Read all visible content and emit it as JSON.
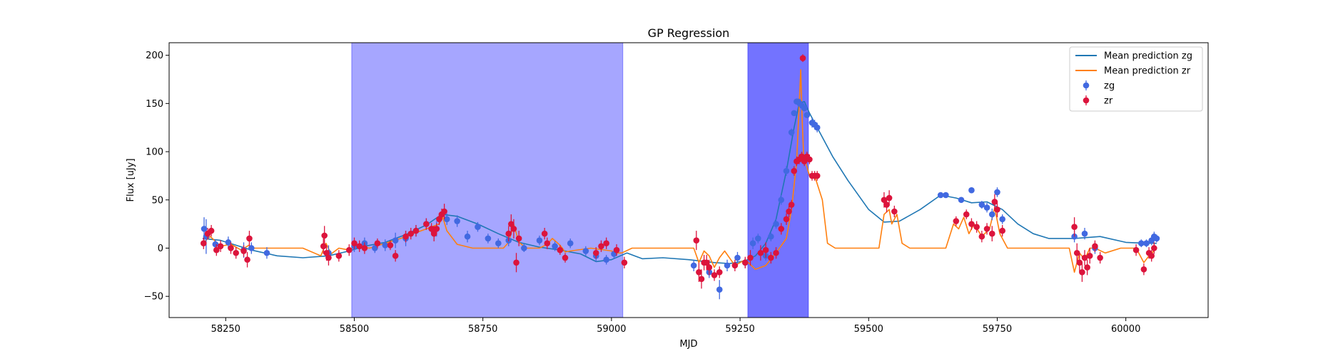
{
  "chart_data": {
    "type": "scatter",
    "title": "GP Regression",
    "xlabel": "MJD",
    "ylabel": "Flux [uJy]",
    "xlim": [
      58140,
      60160
    ],
    "ylim": [
      -72,
      213
    ],
    "xticks": [
      58250,
      58500,
      58750,
      59000,
      59250,
      59500,
      59750,
      60000
    ],
    "yticks": [
      -50,
      0,
      50,
      100,
      150,
      200
    ],
    "grid": false,
    "legend_position": "top-right",
    "shaded_regions": [
      {
        "x0": 58495,
        "x1": 59022,
        "color": "#0000ff",
        "alpha": 0.35
      },
      {
        "x0": 59265,
        "x1": 59383,
        "color": "#0000ff",
        "alpha": 0.55
      }
    ],
    "colors": {
      "zg_line": "#1f77b4",
      "zr_line": "#ff7f0e",
      "zg_points": "#4169e1",
      "zr_points": "#dc143c"
    },
    "legend": [
      {
        "label": "Mean prediction zg",
        "kind": "line",
        "color": "#1f77b4"
      },
      {
        "label": "Mean prediction zr",
        "kind": "line",
        "color": "#ff7f0e"
      },
      {
        "label": "zg",
        "kind": "point",
        "color": "#4169e1"
      },
      {
        "label": "zr",
        "kind": "point",
        "color": "#dc143c"
      }
    ],
    "series": [
      {
        "name": "Mean prediction zg",
        "kind": "line",
        "x": [
          58205,
          58240,
          58270,
          58300,
          58350,
          58400,
          58450,
          58490,
          58520,
          58560,
          58600,
          58640,
          58670,
          58700,
          58740,
          58780,
          58820,
          58860,
          58900,
          58940,
          58970,
          59000,
          59030,
          59060,
          59100,
          59150,
          59200,
          59230,
          59260,
          59280,
          59300,
          59320,
          59340,
          59355,
          59365,
          59375,
          59385,
          59400,
          59430,
          59460,
          59500,
          59530,
          59560,
          59600,
          59640,
          59670,
          59700,
          59730,
          59760,
          59790,
          59820,
          59850,
          59900,
          59950,
          60000,
          60040,
          60060
        ],
        "y": [
          10,
          8,
          3,
          -2,
          -8,
          -10,
          -8,
          -3,
          2,
          6,
          14,
          24,
          35,
          33,
          25,
          15,
          6,
          1,
          -2,
          -6,
          -14,
          -12,
          -5,
          -11,
          -10,
          -12,
          -15,
          -16,
          -13,
          -8,
          5,
          30,
          80,
          125,
          150,
          152,
          140,
          125,
          95,
          70,
          40,
          27,
          28,
          40,
          55,
          52,
          47,
          48,
          40,
          25,
          15,
          10,
          10,
          12,
          6,
          5,
          5
        ]
      },
      {
        "name": "Mean prediction zr",
        "kind": "line",
        "x": [
          58205,
          58220,
          58240,
          58260,
          58280,
          58295,
          58305,
          58320,
          58400,
          58435,
          58445,
          58455,
          58470,
          58490,
          58500,
          58530,
          58560,
          58590,
          58610,
          58630,
          58650,
          58665,
          58672,
          58680,
          58700,
          58730,
          58790,
          58800,
          58810,
          58820,
          58835,
          58860,
          58875,
          58885,
          58900,
          58910,
          58920,
          58960,
          59000,
          59010,
          59020,
          59040,
          59080,
          59160,
          59170,
          59180,
          59190,
          59200,
          59210,
          59220,
          59240,
          59260,
          59280,
          59300,
          59320,
          59340,
          59350,
          59360,
          59365,
          59368,
          59371,
          59374,
          59378,
          59385,
          59395,
          59410,
          59420,
          59435,
          59480,
          59520,
          59530,
          59540,
          59545,
          59555,
          59565,
          59580,
          59650,
          59665,
          59675,
          59685,
          59695,
          59705,
          59720,
          59735,
          59745,
          59755,
          59770,
          59800,
          59890,
          59900,
          59910,
          59920,
          59930,
          59940,
          59960,
          59990,
          60020,
          60035,
          60045,
          60060
        ],
        "y": [
          5,
          12,
          2,
          4,
          -2,
          3,
          0,
          0,
          0,
          -8,
          5,
          -6,
          0,
          -2,
          2,
          0,
          5,
          10,
          14,
          18,
          22,
          25,
          32,
          18,
          4,
          0,
          0,
          6,
          25,
          6,
          0,
          0,
          4,
          10,
          3,
          -4,
          -3,
          0,
          -3,
          -5,
          -5,
          0,
          0,
          0,
          -15,
          -3,
          -8,
          -20,
          -10,
          -3,
          -18,
          -12,
          -22,
          -18,
          -5,
          10,
          40,
          90,
          150,
          185,
          130,
          90,
          88,
          75,
          75,
          50,
          5,
          0,
          0,
          0,
          35,
          40,
          25,
          35,
          5,
          0,
          0,
          25,
          20,
          32,
          15,
          25,
          12,
          20,
          42,
          15,
          0,
          0,
          0,
          -25,
          -5,
          -12,
          0,
          0,
          -5,
          0,
          0,
          -15,
          -8,
          0
        ]
      },
      {
        "name": "zg",
        "kind": "point",
        "x": [
          58208,
          58212,
          58230,
          58255,
          58285,
          58300,
          58330,
          58450,
          58500,
          58520,
          58540,
          58560,
          58580,
          58600,
          58620,
          58640,
          58660,
          58680,
          58700,
          58720,
          58740,
          58760,
          58780,
          58800,
          58830,
          58860,
          58890,
          58920,
          58950,
          58970,
          58990,
          59005,
          59160,
          59190,
          59210,
          59225,
          59245,
          59260,
          59275,
          59285,
          59300,
          59310,
          59320,
          59330,
          59340,
          59350,
          59355,
          59360,
          59363,
          59366,
          59370,
          59375,
          59380,
          59390,
          59395,
          59400,
          59640,
          59650,
          59680,
          59700,
          59720,
          59730,
          59740,
          59750,
          59760,
          59900,
          59920,
          59940,
          60030,
          60040,
          60050,
          60055,
          60060
        ],
        "y": [
          20,
          12,
          4,
          6,
          -2,
          0,
          -5,
          -5,
          2,
          5,
          0,
          3,
          8,
          10,
          18,
          25,
          20,
          30,
          28,
          12,
          22,
          10,
          5,
          8,
          0,
          8,
          2,
          5,
          -3,
          -8,
          -12,
          -6,
          -18,
          -25,
          -43,
          -18,
          -10,
          -15,
          5,
          10,
          -8,
          12,
          25,
          50,
          80,
          120,
          140,
          152,
          152,
          150,
          148,
          145,
          138,
          130,
          128,
          125,
          55,
          55,
          50,
          60,
          45,
          42,
          35,
          58,
          30,
          12,
          15,
          0,
          5,
          5,
          8,
          12,
          10
        ],
        "yerr": [
          12,
          18,
          5,
          6,
          8,
          6,
          6,
          8,
          6,
          6,
          5,
          6,
          8,
          8,
          6,
          6,
          8,
          6,
          6,
          6,
          5,
          5,
          5,
          6,
          4,
          5,
          5,
          5,
          5,
          6,
          5,
          5,
          6,
          6,
          10,
          6,
          6,
          5,
          6,
          5,
          5,
          5,
          5,
          5,
          5,
          4,
          3,
          3,
          3,
          3,
          3,
          3,
          3,
          5,
          5,
          5,
          2,
          2,
          2,
          3,
          4,
          5,
          6,
          5,
          5,
          6,
          6,
          6,
          4,
          4,
          5,
          5,
          4
        ]
      },
      {
        "name": "zr",
        "kind": "point",
        "x": [
          58207,
          58215,
          58222,
          58232,
          58240,
          58260,
          58270,
          58285,
          58292,
          58296,
          58440,
          58442,
          58446,
          58450,
          58470,
          58490,
          58500,
          58510,
          58520,
          58545,
          58570,
          58580,
          58600,
          58610,
          58620,
          58640,
          58650,
          58655,
          58660,
          58665,
          58670,
          58675,
          58800,
          58805,
          58810,
          58815,
          58820,
          58870,
          58875,
          58900,
          58910,
          58970,
          58980,
          58990,
          59010,
          59025,
          59165,
          59170,
          59175,
          59180,
          59185,
          59190,
          59200,
          59210,
          59240,
          59260,
          59270,
          59290,
          59300,
          59310,
          59320,
          59330,
          59340,
          59345,
          59350,
          59355,
          59360,
          59365,
          59370,
          59372,
          59375,
          59380,
          59385,
          59390,
          59395,
          59400,
          59530,
          59535,
          59540,
          59550,
          59670,
          59690,
          59700,
          59710,
          59720,
          59730,
          59740,
          59745,
          59750,
          59760,
          59900,
          59905,
          59910,
          59915,
          59920,
          59925,
          59930,
          59940,
          59950,
          60020,
          60035,
          60045,
          60050,
          60055
        ],
        "y": [
          5,
          15,
          18,
          -2,
          2,
          0,
          -5,
          -3,
          -12,
          10,
          2,
          13,
          -5,
          -10,
          -8,
          -2,
          5,
          2,
          0,
          5,
          3,
          -8,
          12,
          15,
          18,
          25,
          20,
          15,
          20,
          30,
          35,
          38,
          15,
          25,
          20,
          -15,
          10,
          15,
          5,
          -2,
          -10,
          -5,
          2,
          5,
          -2,
          -15,
          8,
          -25,
          -32,
          -15,
          -15,
          -20,
          -28,
          -25,
          -18,
          -15,
          -10,
          -5,
          -2,
          -10,
          -5,
          20,
          30,
          38,
          45,
          80,
          90,
          92,
          95,
          197,
          90,
          95,
          92,
          75,
          75,
          75,
          50,
          45,
          52,
          38,
          28,
          35,
          25,
          22,
          12,
          20,
          15,
          48,
          40,
          18,
          22,
          -5,
          -15,
          -25,
          -10,
          -20,
          -8,
          2,
          -10,
          -2,
          -22,
          -5,
          -8,
          0
        ],
        "yerr": [
          6,
          6,
          6,
          6,
          6,
          6,
          6,
          6,
          8,
          8,
          8,
          10,
          8,
          8,
          6,
          6,
          6,
          6,
          6,
          5,
          5,
          6,
          6,
          6,
          6,
          6,
          6,
          8,
          6,
          6,
          6,
          8,
          8,
          10,
          10,
          10,
          8,
          6,
          6,
          5,
          5,
          6,
          6,
          6,
          6,
          6,
          10,
          10,
          10,
          8,
          8,
          8,
          6,
          6,
          6,
          6,
          8,
          8,
          8,
          6,
          6,
          6,
          6,
          6,
          5,
          5,
          5,
          5,
          5,
          4,
          5,
          5,
          5,
          5,
          5,
          5,
          8,
          8,
          8,
          6,
          5,
          5,
          6,
          6,
          6,
          6,
          8,
          8,
          8,
          6,
          10,
          10,
          10,
          10,
          8,
          8,
          8,
          6,
          6,
          6,
          6,
          6,
          6,
          6
        ]
      }
    ]
  }
}
